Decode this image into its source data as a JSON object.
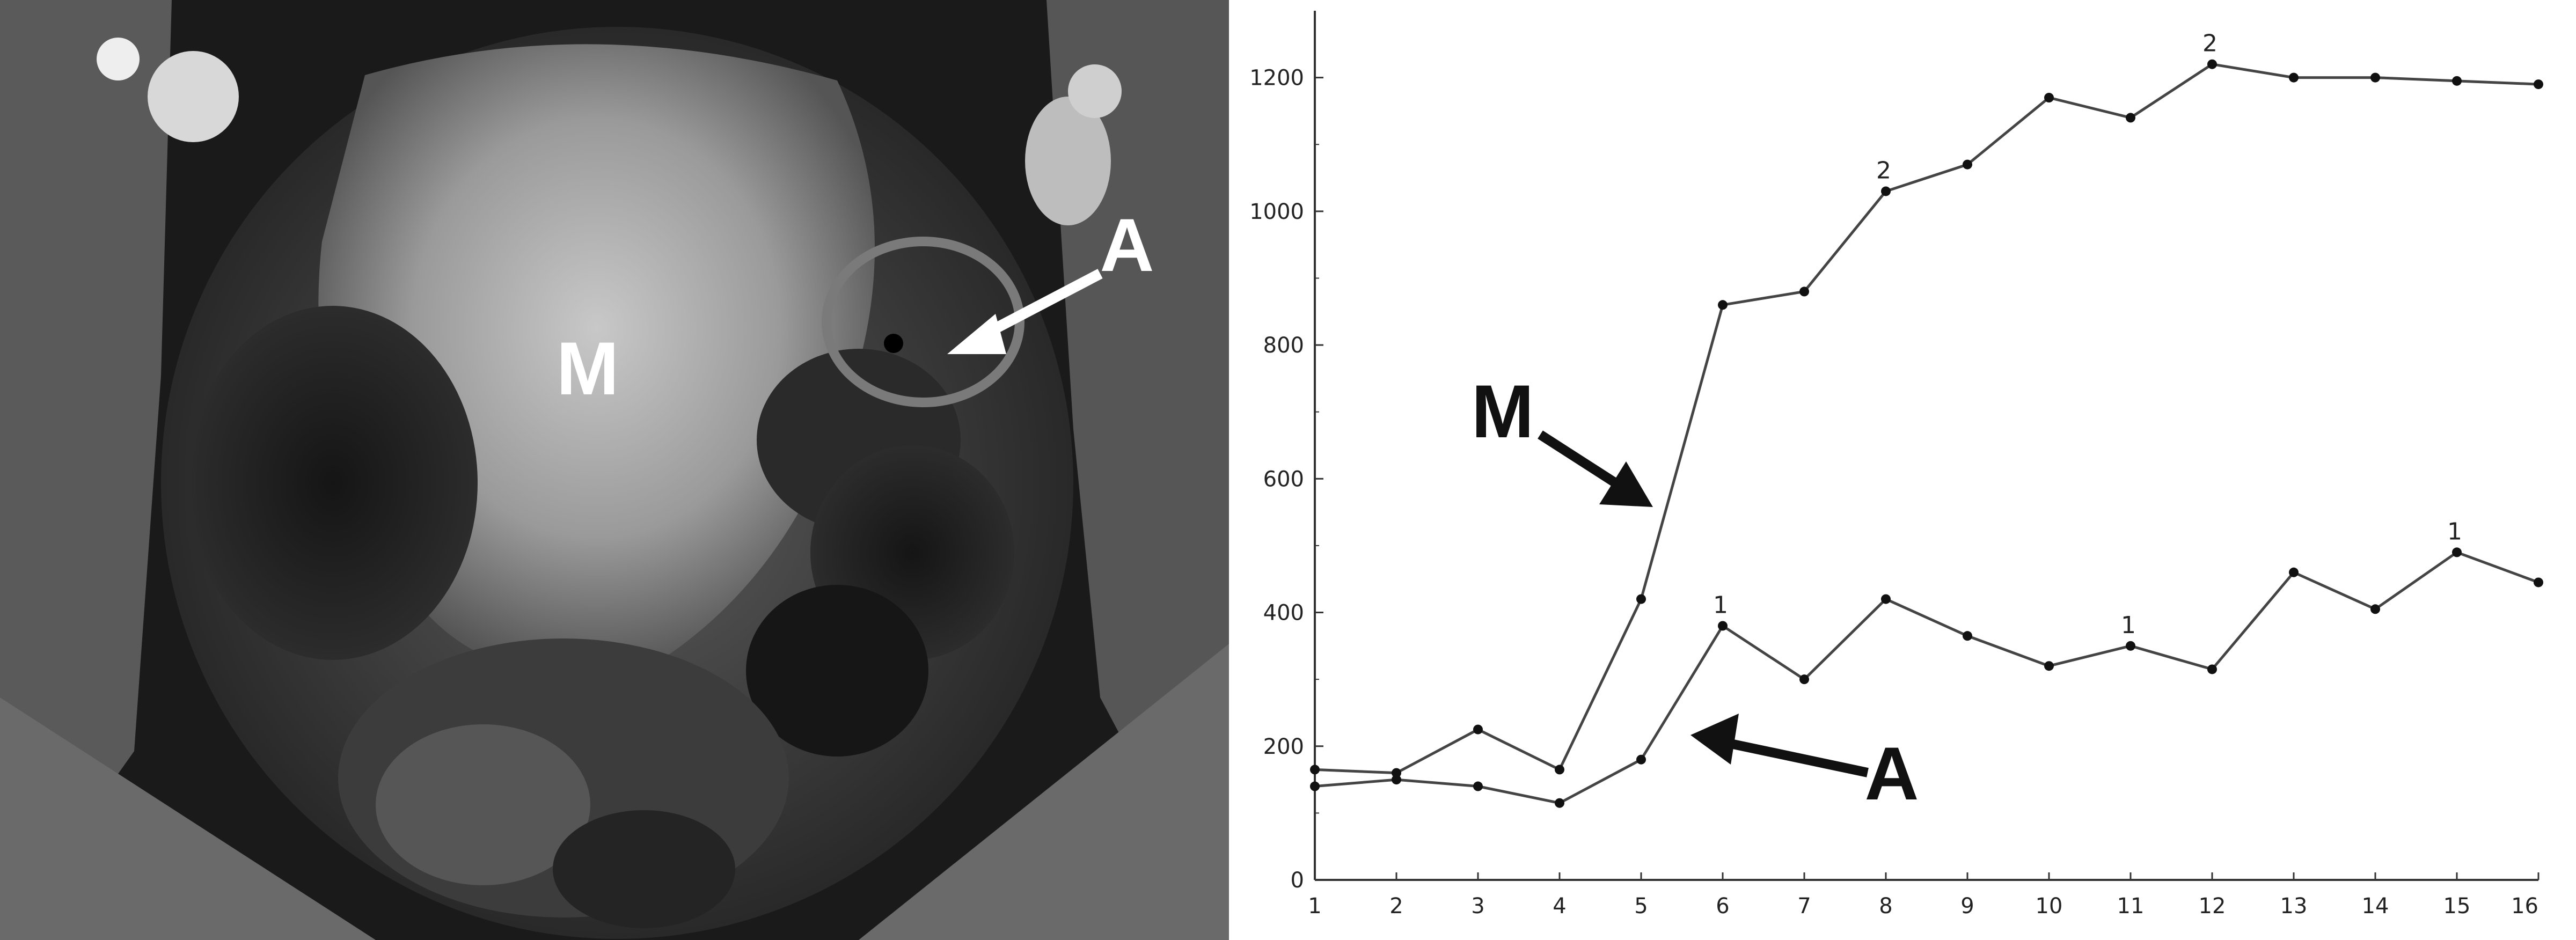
{
  "mri_panel": {
    "labels": {
      "mass": "M",
      "adnexa": "A"
    },
    "colors": {
      "label": "#ffffff",
      "arrow": "#ffffff"
    }
  },
  "chart_data": {
    "type": "line",
    "x": [
      1,
      2,
      3,
      4,
      5,
      6,
      7,
      8,
      9,
      10,
      11,
      12,
      13,
      14,
      15,
      16
    ],
    "xlim": [
      1,
      16
    ],
    "ylim": [
      0,
      1300
    ],
    "xticks": [
      "1",
      "2",
      "3",
      "4",
      "5",
      "6",
      "7",
      "8",
      "9",
      "10",
      "11",
      "12",
      "13",
      "14",
      "15",
      "16"
    ],
    "yticks": [
      "0",
      "200",
      "400",
      "600",
      "800",
      "1000",
      "1200"
    ],
    "grid": false,
    "series": [
      {
        "name": "M",
        "values": [
          140,
          150,
          140,
          115,
          180,
          380,
          300,
          420,
          365,
          320,
          350,
          315,
          460,
          405,
          490,
          445
        ],
        "point_labels": {
          "6": "1",
          "11": "1",
          "15": "1"
        }
      },
      {
        "name": "A",
        "values": [
          165,
          160,
          225,
          165,
          420,
          860,
          880,
          1030,
          1070,
          1170,
          1140,
          1220,
          1200,
          1200,
          1195,
          1190
        ],
        "point_labels": {
          "8": "2",
          "12": "2"
        }
      }
    ],
    "annotations": {
      "m_label": "M",
      "a_label": "A"
    },
    "colors": {
      "line": "#444444",
      "axis": "#333333",
      "arrow": "#111111"
    }
  }
}
